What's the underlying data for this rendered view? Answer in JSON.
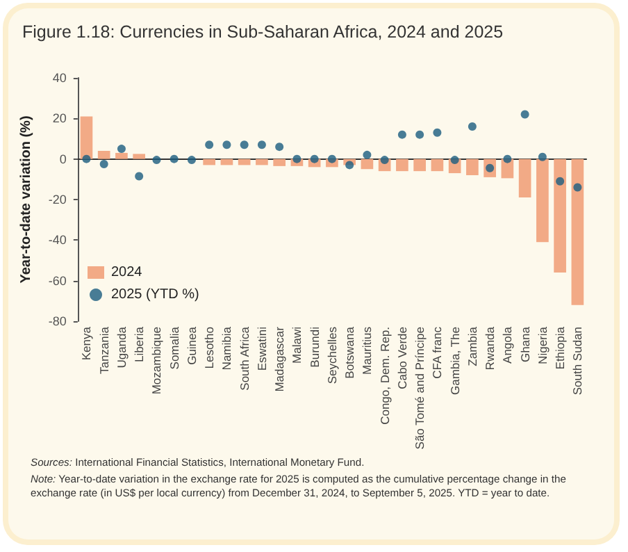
{
  "chart_data": {
    "type": "bar",
    "title": "Figure 1.18: Currencies in Sub-Saharan Africa, 2024 and 2025",
    "ylabel": "Year-to-date variation (%)",
    "categories": [
      "Kenya",
      "Tanzania",
      "Uganda",
      "Liberia",
      "Mozambique",
      "Somalia",
      "Guinea",
      "Lesotho",
      "Namibia",
      "South Africa",
      "Eswatini",
      "Madagascar",
      "Malawi",
      "Burundi",
      "Seychelles",
      "Botswana",
      "Mauritius",
      "Congo, Dem. Rep.",
      "Cabo Verde",
      "São Tomé and Príncipe",
      "CFA franc",
      "Gambia, The",
      "Zambia",
      "Rwanda",
      "Angola",
      "Ghana",
      "Nigeria",
      "Ethiopia",
      "South Sudan"
    ],
    "series": [
      {
        "name": "2024",
        "color": "#f2aa86",
        "values": [
          21,
          4,
          3,
          2.5,
          0,
          0,
          0,
          -3,
          -3,
          -3,
          -3,
          -3.5,
          -3.5,
          -4,
          -4,
          -3,
          -5,
          -6,
          -6,
          -6,
          -6,
          -7,
          -8,
          -9,
          -9.5,
          -19,
          -41,
          -56,
          -72
        ]
      },
      {
        "name": "2025 (YTD %)",
        "type": "scatter",
        "color": "#1a5c80",
        "marker": "circle",
        "values": [
          0,
          -2.5,
          5,
          -8.5,
          -0.5,
          0,
          -0.5,
          7,
          7,
          7,
          7,
          6,
          0,
          0,
          0,
          -3,
          2,
          -0.5,
          12,
          12,
          13,
          -0.5,
          16,
          -4.5,
          0,
          22,
          1,
          -11,
          -14
        ]
      }
    ],
    "ylim": [
      -80,
      40
    ],
    "yticks": [
      -80,
      -60,
      -40,
      -20,
      0,
      20,
      40
    ],
    "legend": "left",
    "annotations": [
      "Sources: International Financial Statistics, International Monetary Fund.",
      "Note: Year-to-date variation in the exchange rate for 2025 is computed as the cumulative percentage change in the exchange rate (in US$ per local currency) from December 31, 2024, to September 5, 2025. YTD = year to date."
    ]
  }
}
